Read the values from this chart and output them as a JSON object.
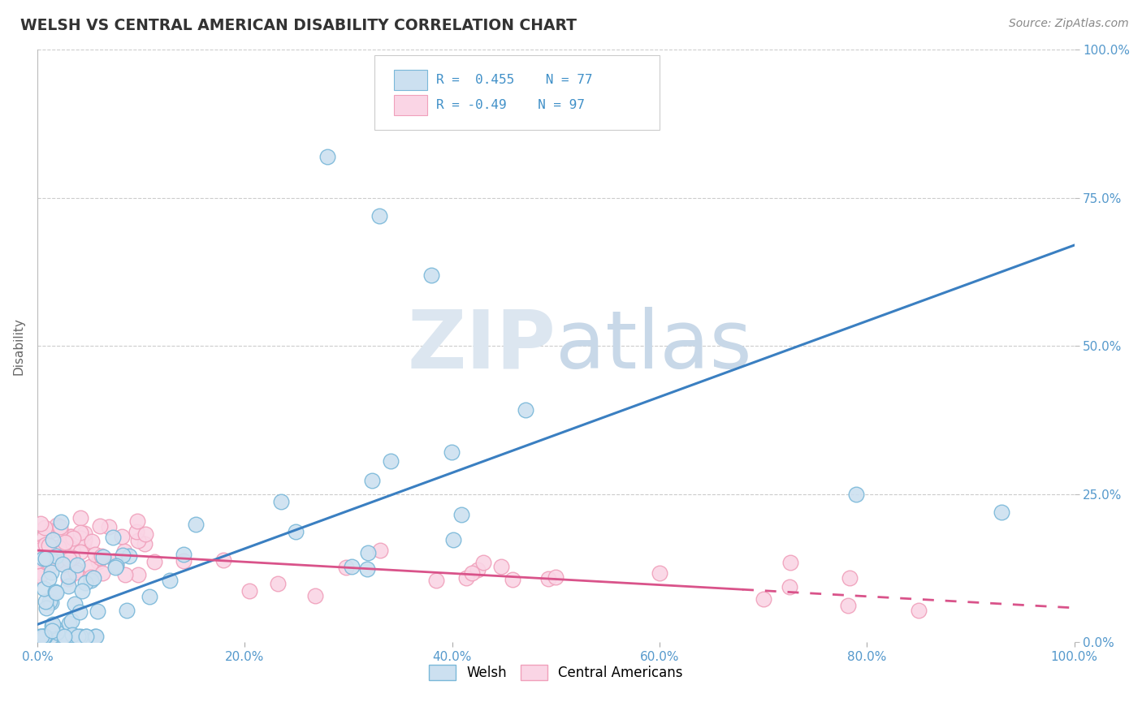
{
  "title": "WELSH VS CENTRAL AMERICAN DISABILITY CORRELATION CHART",
  "source": "Source: ZipAtlas.com",
  "ylabel": "Disability",
  "welsh_R": 0.455,
  "welsh_N": 77,
  "central_R": -0.49,
  "central_N": 97,
  "welsh_color": "#7ab8d9",
  "welsh_face": "#cce0f0",
  "central_color": "#f0a0bb",
  "central_face": "#fad5e5",
  "trend_welsh_color": "#3a7fc1",
  "trend_central_color": "#d9538a",
  "background_color": "#ffffff",
  "watermark": "ZIPatlas",
  "watermark_color": "#dce6f0",
  "legend_R_color": "#4090c8",
  "title_color": "#333333",
  "source_color": "#888888",
  "axis_label_color": "#5599cc",
  "ylabel_color": "#666666"
}
